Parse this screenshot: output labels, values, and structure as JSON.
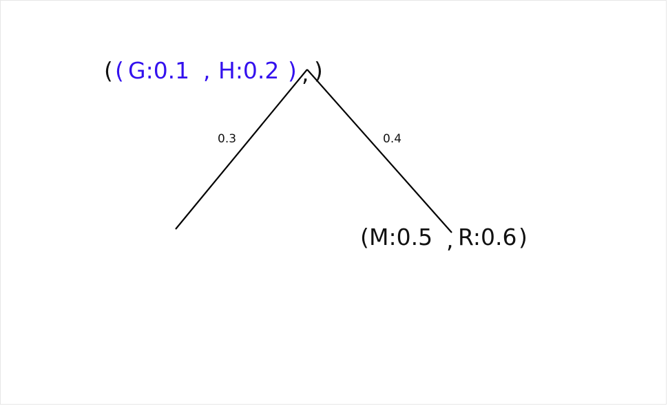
{
  "tree": {
    "root_label": {
      "open_outer": "(",
      "open_inner": "(",
      "left_child": "G:0.1",
      "comma_inner": ",",
      "right_child": "H:0.2",
      "close_inner": ")",
      "comma_outer": ",",
      "close_outer": ")"
    },
    "edges": [
      {
        "label": "0.3"
      },
      {
        "label": "0.4"
      }
    ],
    "right_leaf_label": {
      "open": "(",
      "left_child": "M:0.5",
      "comma": ",",
      "right_child": "R:0.6",
      "close": ")"
    }
  },
  "colors": {
    "highlight": "#3311ee",
    "line": "#000000",
    "text": "#111111",
    "background": "#ffffff"
  }
}
